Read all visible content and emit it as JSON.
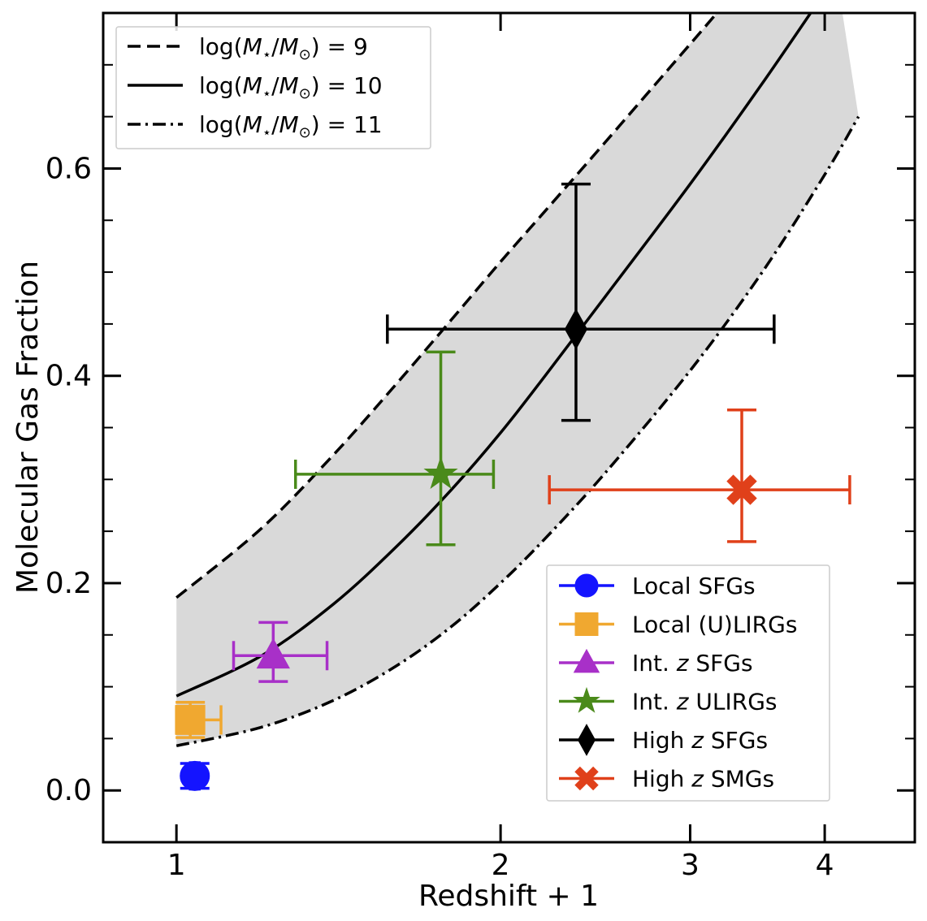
{
  "chart_data": {
    "type": "scatter",
    "xlabel": "Redshift + 1",
    "ylabel": "Molecular Gas Fraction",
    "xscale": "log",
    "xlim": [
      0.855,
      4.85
    ],
    "ylim": [
      -0.05,
      0.75
    ],
    "x_ticks": [
      {
        "value": 1,
        "label": "1"
      },
      {
        "value": 2,
        "label": "2"
      },
      {
        "value": 3,
        "label": "3"
      },
      {
        "value": 4,
        "label": "4"
      }
    ],
    "y_ticks": [
      {
        "value": 0.0,
        "label": "0.0"
      },
      {
        "value": 0.2,
        "label": "0.2"
      },
      {
        "value": 0.4,
        "label": "0.4"
      },
      {
        "value": 0.6,
        "label": "0.6"
      }
    ],
    "y_minor_ticks": [
      0.05,
      0.1,
      0.15,
      0.25,
      0.3,
      0.35,
      0.45,
      0.5,
      0.55,
      0.65,
      0.7
    ],
    "grid": false,
    "band_fill": "#d9d9d9",
    "model_curves": [
      {
        "name": "log(M⋆/M⊙) = 9",
        "mass": "9",
        "linestyle": "dashed",
        "x": [
          1.0,
          1.2,
          1.4,
          1.6,
          1.8,
          2.0,
          2.2,
          2.5,
          3.0,
          3.5,
          4.0
        ],
        "y": [
          0.186,
          0.253,
          0.324,
          0.392,
          0.454,
          0.51,
          0.559,
          0.625,
          0.72,
          0.8,
          0.86
        ]
      },
      {
        "name": "log(M⋆/M⊙) = 10",
        "mass": "10",
        "linestyle": "solid",
        "x": [
          1.0,
          1.2,
          1.4,
          1.6,
          1.8,
          2.0,
          2.2,
          2.5,
          3.0,
          3.5,
          4.0
        ],
        "y": [
          0.091,
          0.13,
          0.18,
          0.235,
          0.29,
          0.345,
          0.4,
          0.476,
          0.585,
          0.682,
          0.77
        ]
      },
      {
        "name": "log(M⋆/M⊙) = 11",
        "mass": "11",
        "linestyle": "dashdot",
        "x": [
          1.0,
          1.2,
          1.4,
          1.6,
          1.8,
          2.0,
          2.2,
          2.5,
          3.0,
          3.5,
          4.0,
          4.3
        ],
        "y": [
          0.043,
          0.061,
          0.087,
          0.12,
          0.158,
          0.2,
          0.243,
          0.306,
          0.405,
          0.5,
          0.594,
          0.65
        ]
      }
    ],
    "series": [
      {
        "name": "Local SFGs",
        "color": "#1414ff",
        "marker": "circle",
        "x": 1.04,
        "y": 0.014,
        "xerr": [
          0.01,
          0.01
        ],
        "yerr": [
          0.012,
          0.012
        ]
      },
      {
        "name": "Local (U)LIRGs",
        "color": "#f0a830",
        "marker": "square",
        "x": 1.03,
        "y": 0.068,
        "xerr": [
          0.03,
          0.07
        ],
        "yerr": [
          0.017,
          0.017
        ]
      },
      {
        "name": "Int. z SFGs",
        "color": "#a830c8",
        "marker": "triangle",
        "x": 1.23,
        "y": 0.13,
        "xerr": [
          0.1,
          0.15
        ],
        "yerr": [
          0.025,
          0.032
        ]
      },
      {
        "name": "Int. z ULIRGs",
        "color": "#4a8a1a",
        "marker": "star",
        "x": 1.76,
        "y": 0.305,
        "xerr": [
          0.47,
          0.21
        ],
        "yerr": [
          0.068,
          0.118
        ]
      },
      {
        "name": "High z SFGs",
        "color": "#000000",
        "marker": "diamond",
        "x": 2.35,
        "y": 0.445,
        "xerr": [
          0.78,
          1.24
        ],
        "yerr": [
          0.088,
          0.14
        ]
      },
      {
        "name": "High z SMGs",
        "color": "#e0401a",
        "marker": "cross",
        "x": 3.35,
        "y": 0.29,
        "xerr": [
          1.13,
          0.87
        ],
        "yerr": [
          0.05,
          0.077
        ]
      }
    ],
    "legend_lines": {
      "placement": "upper-left",
      "entries": [
        {
          "prefix": "log(",
          "m1": "M",
          "sub1": "⋆",
          "slash": "/",
          "m2": "M",
          "sub2": "⊙",
          "suffix": ") = 9",
          "linestyle": "dashed"
        },
        {
          "prefix": "log(",
          "m1": "M",
          "sub1": "⋆",
          "slash": "/",
          "m2": "M",
          "sub2": "⊙",
          "suffix": ") = 10",
          "linestyle": "solid"
        },
        {
          "prefix": "log(",
          "m1": "M",
          "sub1": "⋆",
          "slash": "/",
          "m2": "M",
          "sub2": "⊙",
          "suffix": ") = 11",
          "linestyle": "dashdot"
        }
      ]
    },
    "legend_markers": {
      "placement": "lower-right",
      "entries": [
        {
          "pre": "Local SFGs",
          "italic": "",
          "post": ""
        },
        {
          "pre": "Local (U)LIRGs",
          "italic": "",
          "post": ""
        },
        {
          "pre": "Int. ",
          "italic": "z",
          "post": " SFGs"
        },
        {
          "pre": "Int. ",
          "italic": "z",
          "post": " ULIRGs"
        },
        {
          "pre": "High ",
          "italic": "z",
          "post": " SFGs"
        },
        {
          "pre": "High ",
          "italic": "z",
          "post": " SMGs"
        }
      ]
    }
  }
}
